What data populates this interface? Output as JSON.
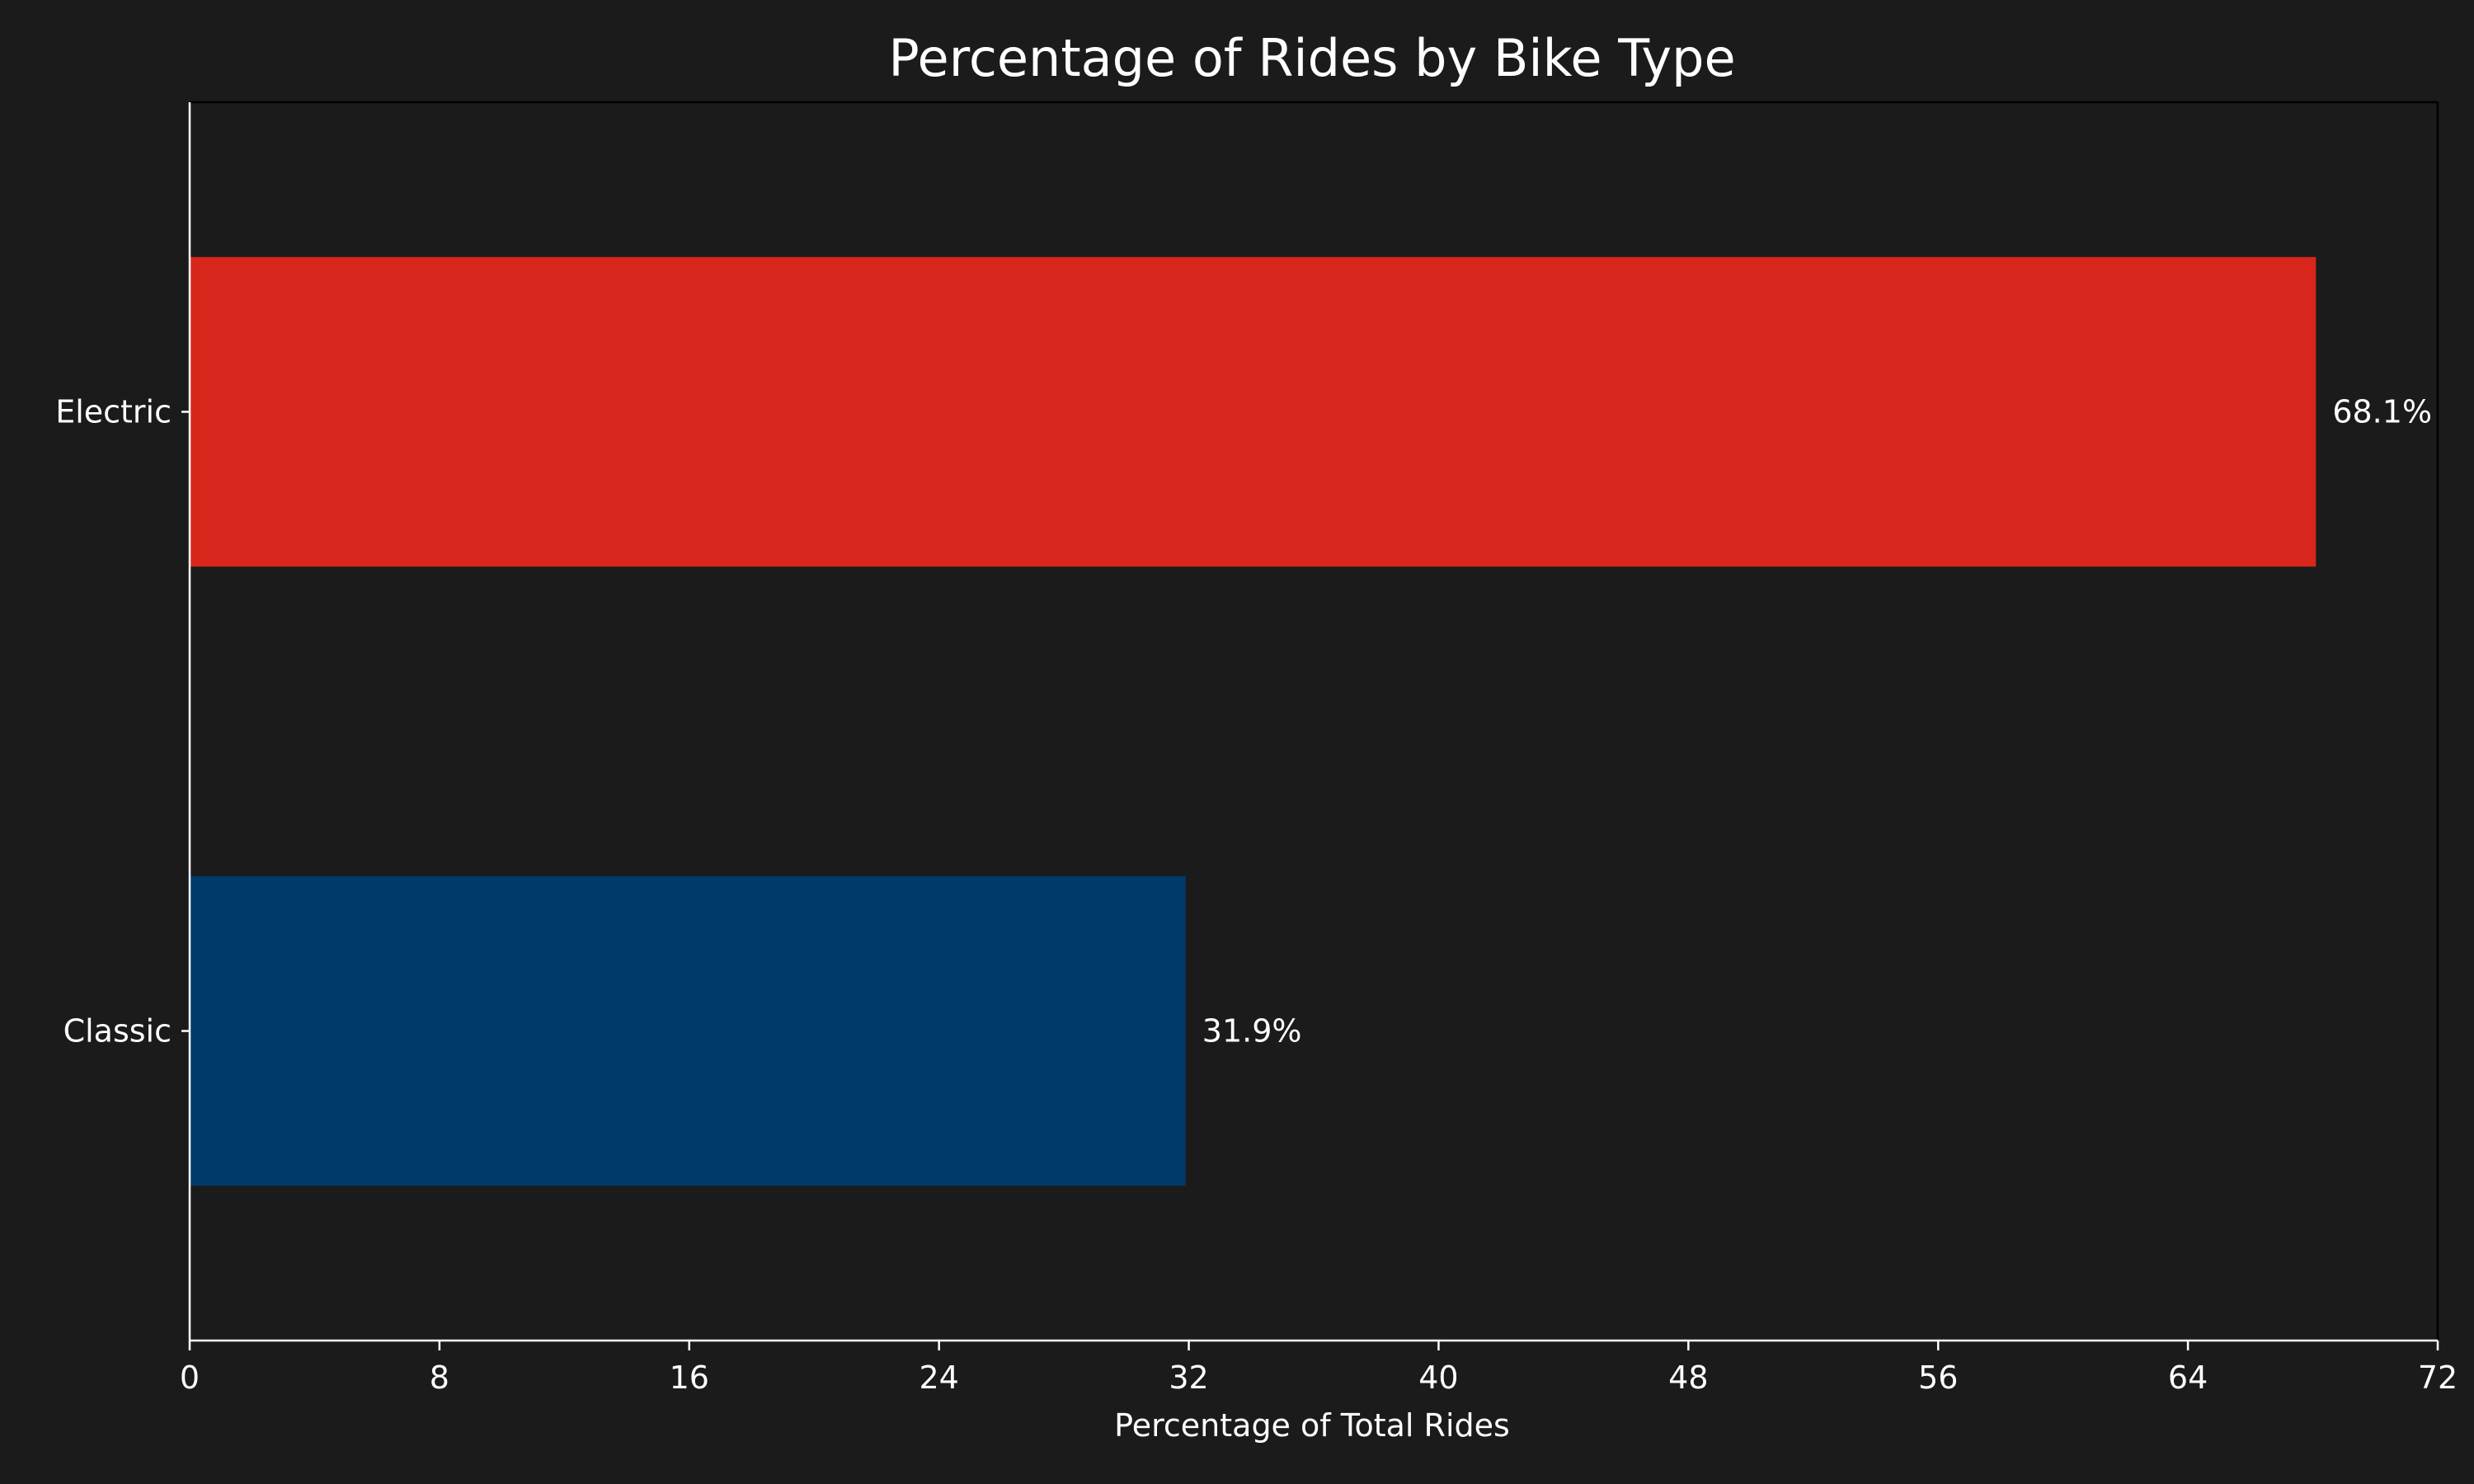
{
  "chart_data": {
    "type": "bar",
    "orientation": "horizontal",
    "title": "Percentage of Rides by Bike Type",
    "xlabel": "Percentage of Total Rides",
    "ylabel": "",
    "categories": [
      "Electric",
      "Classic"
    ],
    "values": [
      68.1,
      31.9
    ],
    "value_labels": [
      "68.1%",
      "31.9%"
    ],
    "bar_colors": [
      "#d9261c",
      "#003a6c"
    ],
    "xlim": [
      0,
      72
    ],
    "xticks": [
      0,
      8,
      16,
      24,
      32,
      40,
      48,
      56,
      64,
      72
    ],
    "xtick_labels": [
      "0",
      "8",
      "16",
      "24",
      "32",
      "40",
      "48",
      "56",
      "64",
      "72"
    ],
    "grid": false,
    "legend": "none",
    "background_color": "#1b1b1b",
    "text_color": "#ffffff"
  }
}
